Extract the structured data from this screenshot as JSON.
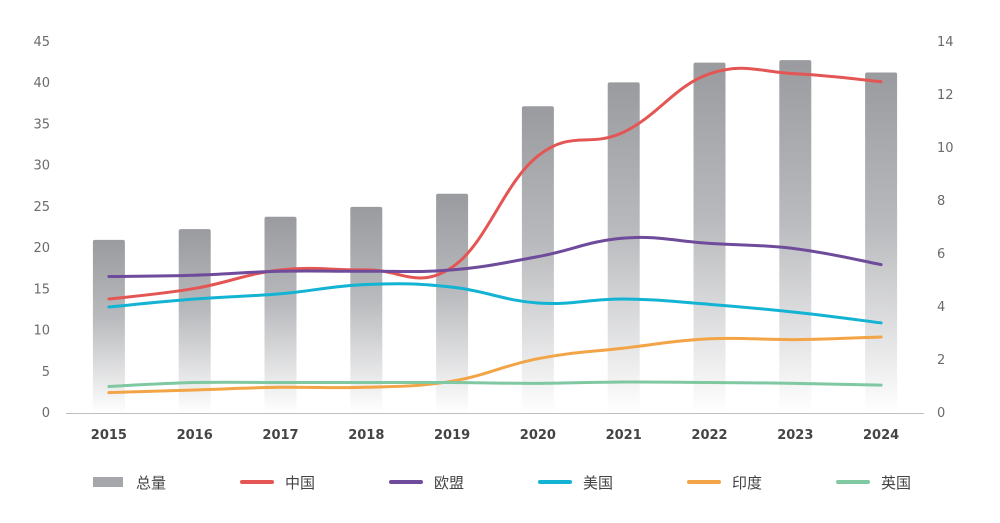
{
  "chart_data": {
    "type": "bar",
    "categories": [
      "2015",
      "2016",
      "2017",
      "2018",
      "2019",
      "2020",
      "2021",
      "2022",
      "2023",
      "2024"
    ],
    "bar_series": {
      "name": "总量",
      "axis": "left",
      "values": [
        21.0,
        22.3,
        23.8,
        25.0,
        26.6,
        37.2,
        40.1,
        42.5,
        42.8,
        41.3
      ],
      "color_top": "#9a9b9f",
      "color_bottom": "#ffffff"
    },
    "line_series": [
      {
        "name": "中国",
        "axis": "right",
        "color": "#e35654",
        "values": [
          4.3,
          4.7,
          5.4,
          5.4,
          5.5,
          9.7,
          10.6,
          12.8,
          12.8,
          12.5
        ]
      },
      {
        "name": "欧盟",
        "axis": "right",
        "color": "#6f4b9c",
        "values": [
          5.15,
          5.2,
          5.35,
          5.35,
          5.4,
          5.9,
          6.6,
          6.4,
          6.2,
          5.6
        ]
      },
      {
        "name": "美国",
        "axis": "right",
        "color": "#12b3d3",
        "values": [
          4.0,
          4.3,
          4.5,
          4.85,
          4.75,
          4.15,
          4.3,
          4.1,
          3.8,
          3.4
        ]
      },
      {
        "name": "印度",
        "axis": "right",
        "color": "#f2a446",
        "values": [
          0.77,
          0.87,
          0.97,
          0.97,
          1.2,
          2.05,
          2.45,
          2.8,
          2.77,
          2.87
        ]
      },
      {
        "name": "英国",
        "axis": "right",
        "color": "#7fc8a1",
        "values": [
          1.0,
          1.15,
          1.15,
          1.15,
          1.15,
          1.12,
          1.17,
          1.15,
          1.12,
          1.05
        ]
      }
    ],
    "left_axis": {
      "ylim": [
        0,
        45
      ],
      "ticks": [
        0,
        5,
        10,
        15,
        20,
        25,
        30,
        35,
        40,
        45
      ]
    },
    "right_axis": {
      "ylim": [
        0,
        14
      ],
      "ticks": [
        0,
        2,
        4,
        6,
        8,
        10,
        12,
        14
      ]
    },
    "grid": false,
    "legend_position": "bottom",
    "legend": [
      "总量",
      "中国",
      "欧盟",
      "美国",
      "印度",
      "英国"
    ]
  }
}
